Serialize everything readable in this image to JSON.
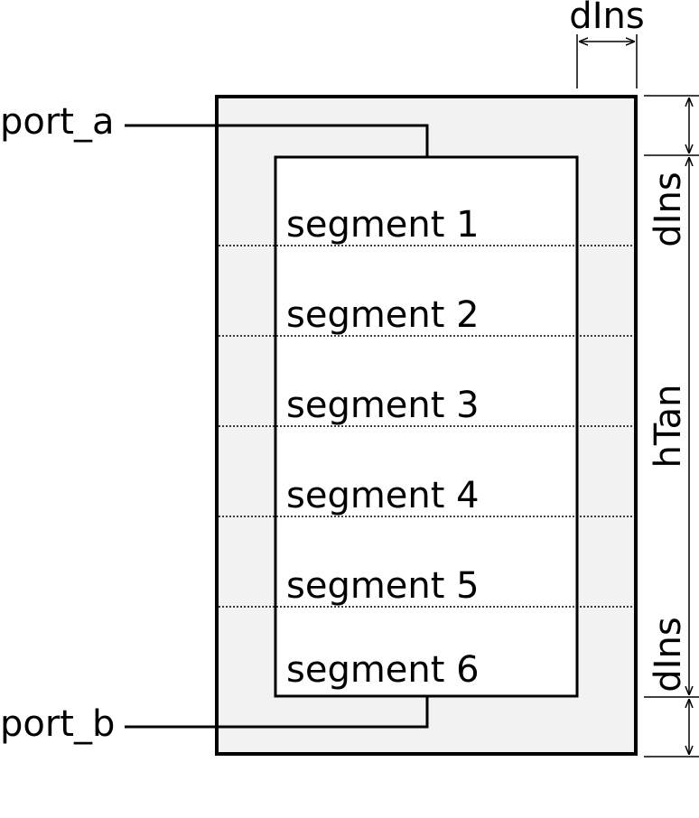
{
  "ports": {
    "a": "port_a",
    "b": "port_b"
  },
  "segments": [
    "segment 1",
    "segment 2",
    "segment 3",
    "segment 4",
    "segment 5",
    "segment 6"
  ],
  "dimensions": {
    "top_width": "dIns",
    "right_upper": "dIns",
    "right_middle": "hTan",
    "right_lower": "dIns"
  },
  "colors": {
    "insulation_fill": "#f2f2f2",
    "stroke": "#000000",
    "tank_fill": "#ffffff"
  }
}
